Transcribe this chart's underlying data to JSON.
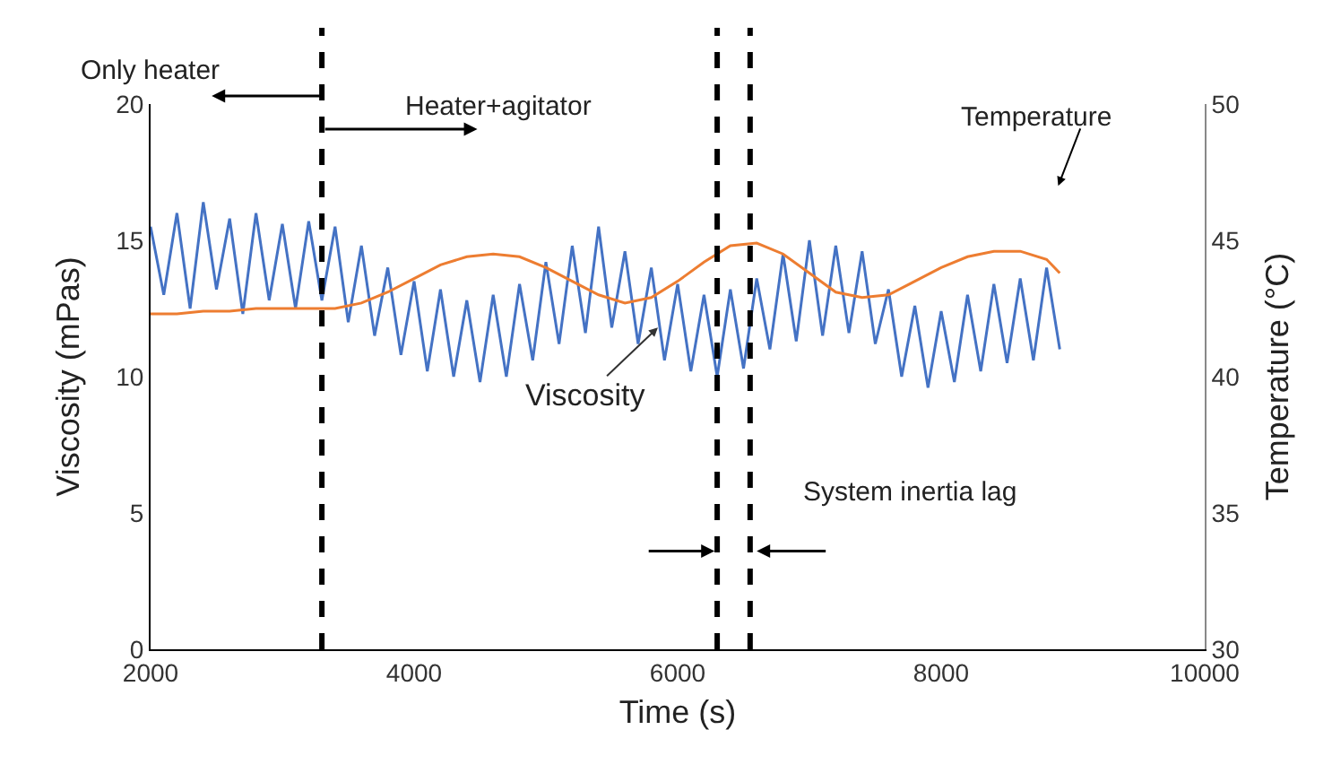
{
  "chart_data": {
    "type": "line",
    "xlabel": "Time (s)",
    "ylabel": "Viscosity (mPas)",
    "y2label": "Temperature (°C)",
    "xlim": [
      2000,
      10000
    ],
    "xticks": [
      2000,
      4000,
      6000,
      8000,
      10000
    ],
    "ylim": [
      0,
      20
    ],
    "yticks": [
      0,
      5,
      10,
      15,
      20
    ],
    "y2lim": [
      30,
      50
    ],
    "y2ticks": [
      30,
      35,
      40,
      45,
      50
    ],
    "marker": "none",
    "line_style": "solid",
    "series": [
      {
        "color": "#4472c4",
        "x": [
          2000,
          2100,
          2200,
          2300,
          2400,
          2500,
          2600,
          2700,
          2800,
          2900,
          3000,
          3100,
          3200,
          3300,
          3400,
          3500,
          3600,
          3700,
          3800,
          3900,
          4000,
          4100,
          4200,
          4300,
          4400,
          4500,
          4600,
          4700,
          4800,
          4900,
          5000,
          5100,
          5200,
          5300,
          5400,
          5500,
          5600,
          5700,
          5800,
          5900,
          6000,
          6100,
          6200,
          6300,
          6400,
          6500,
          6600,
          6700,
          6800,
          6900,
          7000,
          7100,
          7200,
          7300,
          7400,
          7500,
          7600,
          7700,
          7800,
          7900,
          8000,
          8100,
          8200,
          8300,
          8400,
          8500,
          8600,
          8700,
          8800,
          8900
        ],
        "values": [
          15.5,
          13.0,
          16.0,
          12.5,
          16.4,
          13.2,
          15.8,
          12.3,
          16.0,
          12.8,
          15.6,
          12.5,
          15.7,
          12.8,
          15.5,
          12.0,
          14.8,
          11.5,
          14.0,
          10.8,
          13.5,
          10.2,
          13.2,
          10.0,
          12.8,
          9.8,
          13.0,
          10.0,
          13.4,
          10.6,
          14.2,
          11.2,
          14.8,
          11.6,
          15.5,
          11.8,
          14.6,
          11.2,
          14.0,
          10.6,
          13.4,
          10.2,
          13.0,
          10.0,
          13.2,
          10.3,
          13.6,
          11.0,
          14.5,
          11.3,
          15.0,
          11.5,
          14.8,
          11.6,
          14.6,
          11.2,
          13.2,
          10.0,
          12.6,
          9.6,
          12.4,
          9.8,
          13.0,
          10.2,
          13.4,
          10.5,
          13.6,
          10.6,
          14.0,
          11.0
        ]
      },
      {
        "color": "#ed7d31",
        "axis": "y2",
        "x": [
          2000,
          2200,
          2400,
          2600,
          2800,
          3000,
          3200,
          3400,
          3600,
          3800,
          4000,
          4200,
          4400,
          4600,
          4800,
          5000,
          5200,
          5400,
          5600,
          5800,
          6000,
          6200,
          6400,
          6600,
          6800,
          7000,
          7200,
          7400,
          7600,
          7800,
          8000,
          8200,
          8400,
          8600,
          8800,
          8900
        ],
        "values": [
          42.3,
          42.3,
          42.4,
          42.4,
          42.5,
          42.5,
          42.5,
          42.5,
          42.7,
          43.1,
          43.6,
          44.1,
          44.4,
          44.5,
          44.4,
          44.0,
          43.5,
          43.0,
          42.7,
          42.9,
          43.5,
          44.2,
          44.8,
          44.9,
          44.5,
          43.8,
          43.1,
          42.9,
          43.0,
          43.5,
          44.0,
          44.4,
          44.6,
          44.6,
          44.3,
          43.8
        ]
      }
    ],
    "ref_lines": [
      {
        "axis": "x",
        "value": 3300,
        "color": "#000000",
        "line_style": "dashed"
      },
      {
        "axis": "x",
        "value": 6300,
        "color": "#000000",
        "line_style": "dashed"
      },
      {
        "axis": "x",
        "value": 6550,
        "color": "#000000",
        "line_style": "dashed"
      }
    ],
    "annotations": [
      "Only heater",
      "Heater+agitator",
      "Temperature",
      {
        "text": "Viscosity",
        "x": 5850,
        "y": 11.8
      },
      "System inertia lag"
    ]
  }
}
